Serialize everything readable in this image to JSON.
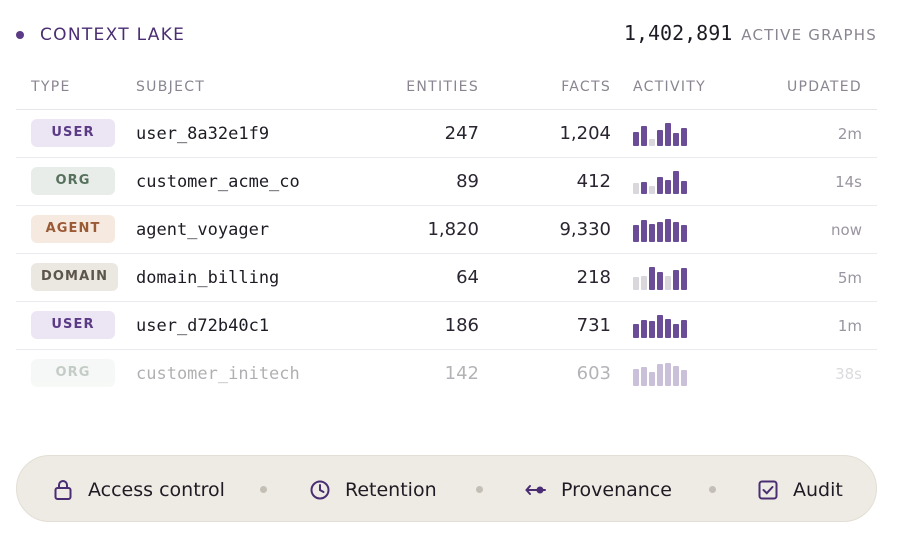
{
  "header": {
    "title": "CONTEXT LAKE",
    "count": "1,402,891",
    "count_label": "ACTIVE GRAPHS"
  },
  "columns": {
    "type": "TYPE",
    "subject": "SUBJECT",
    "entities": "ENTITIES",
    "facts": "FACTS",
    "activity": "ACTIVITY",
    "updated": "UPDATED"
  },
  "rows": [
    {
      "type": "USER",
      "kind": "user",
      "subject": "user_8a32e1f9",
      "entities": "247",
      "facts": "1,204",
      "activity": [
        0.6,
        0.85,
        0.3,
        0.65,
        0.95,
        0.55,
        0.75
      ],
      "updated": "2m"
    },
    {
      "type": "ORG",
      "kind": "org",
      "subject": "customer_acme_co",
      "entities": "89",
      "facts": "412",
      "activity": [
        0.45,
        0.5,
        0.35,
        0.7,
        0.6,
        0.95,
        0.55
      ],
      "updated": "14s"
    },
    {
      "type": "AGENT",
      "kind": "agent",
      "subject": "agent_voyager",
      "entities": "1,820",
      "facts": "9,330",
      "activity": [
        0.7,
        0.9,
        0.75,
        0.85,
        0.95,
        0.85,
        0.7
      ],
      "updated": "now"
    },
    {
      "type": "DOMAIN",
      "kind": "domain",
      "subject": "domain_billing",
      "entities": "64",
      "facts": "218",
      "activity": [
        0.55,
        0.6,
        0.95,
        0.75,
        0.6,
        0.85,
        0.9
      ],
      "updated": "5m"
    },
    {
      "type": "USER",
      "kind": "user",
      "subject": "user_d72b40c1",
      "entities": "186",
      "facts": "731",
      "activity": [
        0.6,
        0.75,
        0.7,
        0.95,
        0.8,
        0.6,
        0.75
      ],
      "updated": "1m"
    },
    {
      "type": "ORG",
      "kind": "org",
      "subject": "customer_initech",
      "entities": "142",
      "facts": "603",
      "activity": [
        0.7,
        0.8,
        0.6,
        0.9,
        0.95,
        0.85,
        0.65
      ],
      "updated": "38s"
    }
  ],
  "activity_off": [
    [
      false,
      false,
      true,
      false,
      false,
      false,
      false
    ],
    [
      true,
      false,
      true,
      false,
      false,
      false,
      false
    ],
    [
      false,
      false,
      false,
      false,
      false,
      false,
      false
    ],
    [
      true,
      true,
      false,
      false,
      true,
      false,
      false
    ],
    [
      false,
      false,
      false,
      false,
      false,
      false,
      false
    ],
    [
      false,
      false,
      false,
      false,
      false,
      false,
      false
    ]
  ],
  "footer": {
    "items": [
      {
        "label": "Access control",
        "icon": "lock-icon"
      },
      {
        "label": "Retention",
        "icon": "clock-icon"
      },
      {
        "label": "Provenance",
        "icon": "provenance-icon"
      },
      {
        "label": "Audit",
        "icon": "checkbox-icon"
      }
    ]
  },
  "colors": {
    "accent": "#5b3a86",
    "bar_on": "#6b4c96",
    "bar_off": "#d9d6dc",
    "footer_bg": "#eeebe4"
  }
}
